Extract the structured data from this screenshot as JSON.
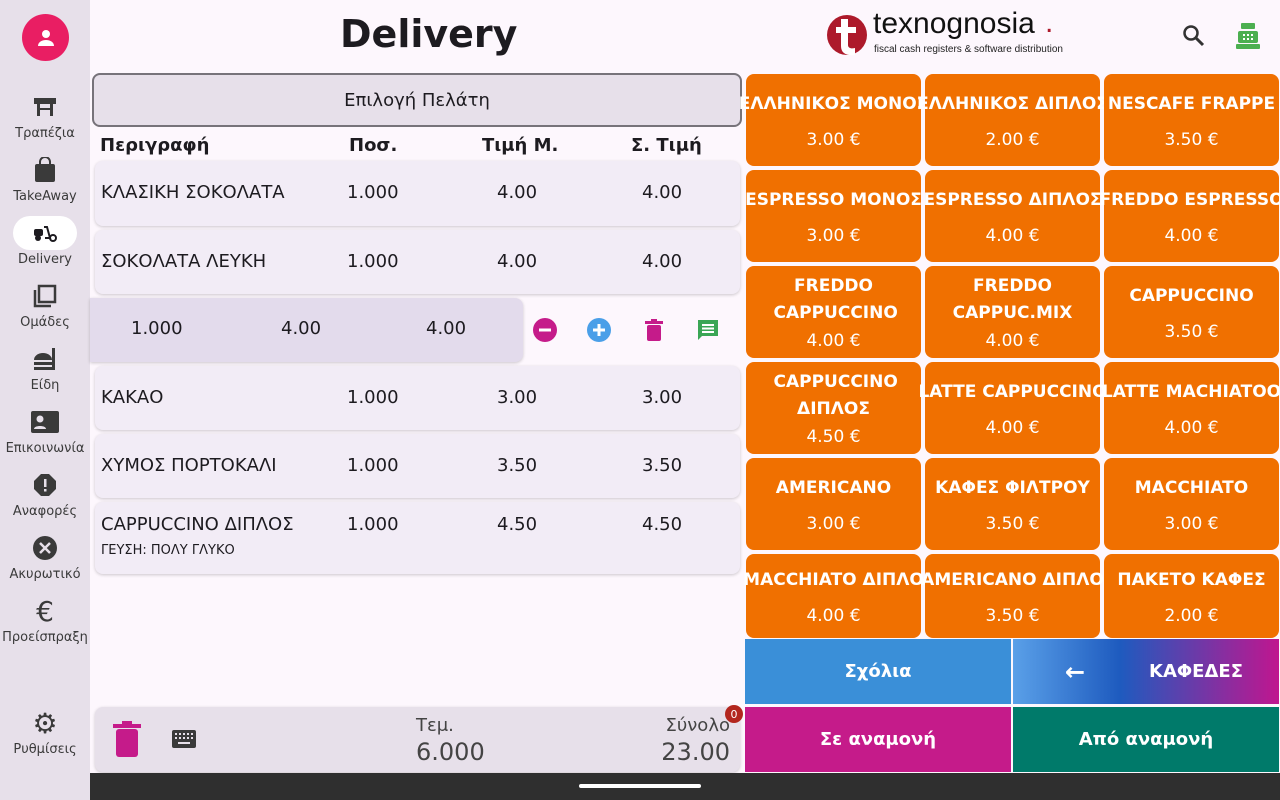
{
  "header": {
    "title": "Delivery",
    "logo_text": "texnognosia",
    "logo_sub": "fiscal cash registers & software distribution"
  },
  "sidebar": {
    "items": [
      {
        "label": "Τραπέζια"
      },
      {
        "label": "TakeAway"
      },
      {
        "label": "Delivery"
      },
      {
        "label": "Ομάδες"
      },
      {
        "label": "Είδη"
      },
      {
        "label": "Επικοινωνία"
      },
      {
        "label": "Αναφορές"
      },
      {
        "label": "Ακυρωτικό"
      },
      {
        "label": "Προείσπραξη"
      },
      {
        "label": "Ρυθμίσεις"
      }
    ]
  },
  "order": {
    "customer_button": "Επιλογή Πελάτη",
    "columns": [
      "Περιγραφή",
      "Ποσ.",
      "Τιμή Μ.",
      "Σ. Τιμή"
    ],
    "rows": [
      {
        "name": "ΚΛΑΣΙΚΗ ΣΟΚΟΛΑΤΑ",
        "qty": "1.000",
        "price": "4.00",
        "total": "4.00"
      },
      {
        "name": "ΣΟΚΟΛΑΤΑ ΛΕΥΚΗ",
        "qty": "1.000",
        "price": "4.00",
        "total": "4.00"
      },
      {
        "name": "",
        "qty": "1.000",
        "price": "4.00",
        "total": "4.00"
      },
      {
        "name": "ΚΑΚΑΟ",
        "qty": "1.000",
        "price": "3.00",
        "total": "3.00"
      },
      {
        "name": "ΧΥΜΟΣ ΠΟΡΤΟΚΑΛΙ",
        "qty": "1.000",
        "price": "3.50",
        "total": "3.50"
      },
      {
        "name": "CAPPUCCINO ΔΙΠΛΟΣ",
        "qty": "1.000",
        "price": "4.50",
        "total": "4.50",
        "note": "ΓΕΥΣΗ: ΠΟΛΥ ΓΛΥΚΟ"
      }
    ],
    "footer": {
      "items_label": "Τεμ.",
      "items_value": "6.000",
      "total_label": "Σύνολο",
      "total_value": "23.00",
      "badge": "0"
    }
  },
  "products": [
    {
      "name": "ΕΛΛΗΝΙΚΟΣ ΜΟΝΟΣ",
      "price": "3.00 €"
    },
    {
      "name": "ΕΛΛΗΝΙΚΟΣ ΔΙΠΛΟΣ",
      "price": "2.00 €"
    },
    {
      "name": "NESCAFE FRAPPE",
      "price": "3.50 €"
    },
    {
      "name": "ESPRESSO ΜΟΝΟΣ",
      "price": "3.00 €"
    },
    {
      "name": "ESPRESSO ΔΙΠΛΟΣ",
      "price": "4.00 €"
    },
    {
      "name": "FREDDO ESPRESSO",
      "price": "4.00 €"
    },
    {
      "name": "FREDDO CAPPUCCINO",
      "price": "4.00 €"
    },
    {
      "name": "FREDDO CAPPUC.MIX",
      "price": "4.00 €"
    },
    {
      "name": "CAPPUCCINO",
      "price": "3.50 €"
    },
    {
      "name": "CAPPUCCINO ΔΙΠΛΟΣ",
      "price": "4.50 €"
    },
    {
      "name": "LATTE CAPPUCCINO",
      "price": "4.00 €"
    },
    {
      "name": "LATTE MACHIATOO",
      "price": "4.00 €"
    },
    {
      "name": "AMERICANO",
      "price": "3.00 €"
    },
    {
      "name": "ΚΑΦΕΣ ΦΙΛΤΡΟΥ",
      "price": "3.50 €"
    },
    {
      "name": "MACCHIATO",
      "price": "3.00 €"
    },
    {
      "name": "MACCHIATO ΔΙΠΛΟ",
      "price": "4.00 €"
    },
    {
      "name": "AMERICANO ΔΙΠΛΟ",
      "price": "3.50 €"
    },
    {
      "name": "ΠΑΚΕΤΟ ΚΑΦΕΣ",
      "price": "2.00 €"
    }
  ],
  "actions": {
    "comments": "Σχόλια",
    "category": "ΚΑΦΕΔΕΣ",
    "hold": "Σε αναμονή",
    "from_hold": "Από αναμονή"
  },
  "colors": {
    "product": "#f07000",
    "accent": "#c51b8a",
    "teal": "#007a6a",
    "blue": "#3a8fd8"
  }
}
